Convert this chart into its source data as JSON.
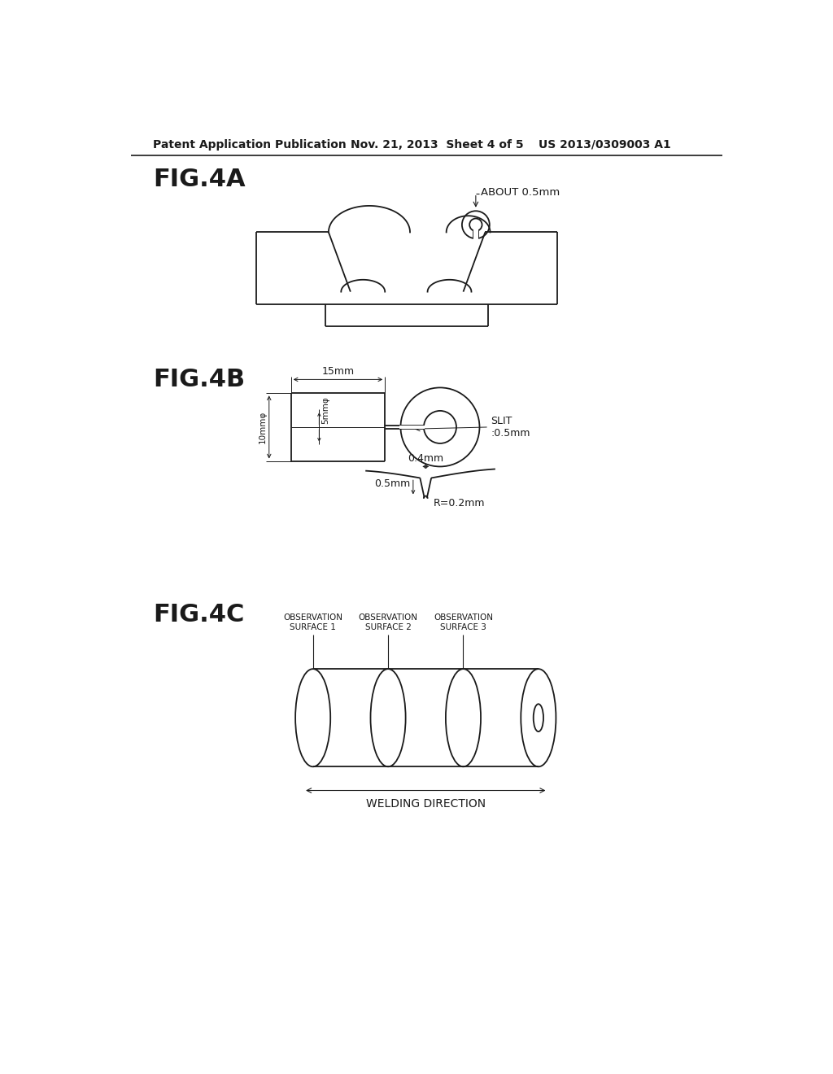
{
  "header_left": "Patent Application Publication",
  "header_mid": "Nov. 21, 2013  Sheet 4 of 5",
  "header_right": "US 2013/0309003 A1",
  "fig4a_label": "FIG.4A",
  "fig4b_label": "FIG.4B",
  "fig4c_label": "FIG.4C",
  "about_0_5mm": "ABOUT 0.5mm",
  "slit_label": "SLIT\n:0.5mm",
  "dim_15mm": "15mm",
  "dim_10mm": "10mmφ",
  "dim_5mm": "5mmφ",
  "dim_04mm": "0.4mm",
  "dim_05mm": "0.5mm",
  "dim_R02mm": "R=0.2mm",
  "obs1": "OBSERVATION\nSURFACE 1",
  "obs2": "OBSERVATION\nSURFACE 2",
  "obs3": "OBSERVATION\nSURFACE 3",
  "welding_dir": "WELDING DIRECTION",
  "bg_color": "#ffffff",
  "line_color": "#1a1a1a",
  "text_color": "#1a1a1a",
  "lw": 1.3,
  "lw_thin": 0.8
}
